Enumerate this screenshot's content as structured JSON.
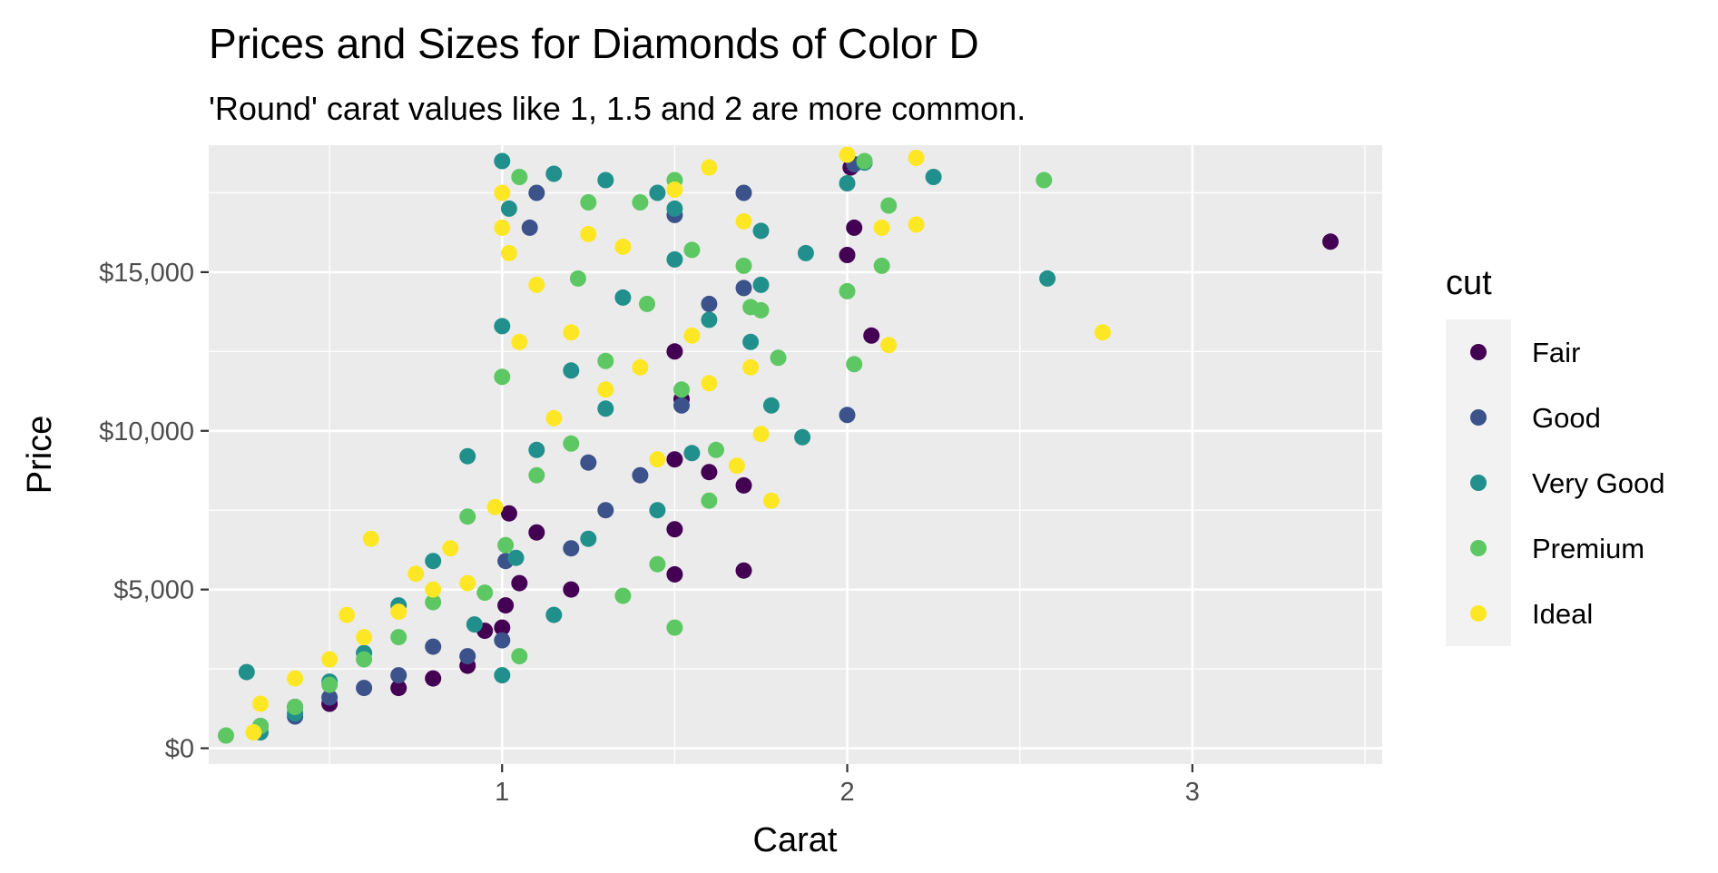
{
  "chart_data": {
    "type": "scatter",
    "title": "Prices and Sizes for Diamonds of Color D",
    "subtitle": "'Round' carat values like 1, 1.5 and 2 are more common.",
    "xlabel": "Carat",
    "ylabel": "Price",
    "xlim": [
      0.15,
      3.55
    ],
    "ylim": [
      -500,
      19000
    ],
    "x_ticks": [
      1,
      2,
      3
    ],
    "x_tick_labels": [
      "1",
      "2",
      "3"
    ],
    "y_ticks": [
      0,
      5000,
      10000,
      15000
    ],
    "y_tick_labels": [
      "$0",
      "$5,000",
      "$10,000",
      "$15,000"
    ],
    "grid": true,
    "legend": {
      "title": "cut",
      "position": "right",
      "entries": [
        "Fair",
        "Good",
        "Very Good",
        "Premium",
        "Ideal"
      ]
    },
    "colors": {
      "Fair": "#440154",
      "Good": "#3b528b",
      "Very Good": "#21908c",
      "Premium": "#5dc863",
      "Ideal": "#fde725"
    },
    "series": [
      {
        "name": "Fair",
        "points": [
          [
            3.4,
            15960
          ],
          [
            2.0,
            15540
          ],
          [
            2.07,
            13000
          ],
          [
            2.02,
            16400
          ],
          [
            1.7,
            5600
          ],
          [
            1.7,
            8280
          ],
          [
            1.5,
            5480
          ],
          [
            1.5,
            6900
          ],
          [
            1.5,
            9100
          ],
          [
            1.5,
            12500
          ],
          [
            1.6,
            8700
          ],
          [
            1.01,
            4500
          ],
          [
            1.0,
            3800
          ],
          [
            1.05,
            5200
          ],
          [
            0.9,
            2600
          ],
          [
            0.8,
            2200
          ],
          [
            0.7,
            1900
          ],
          [
            0.5,
            1400
          ],
          [
            0.4,
            1300
          ],
          [
            1.02,
            7400
          ],
          [
            1.2,
            5000
          ],
          [
            2.01,
            18300
          ],
          [
            1.52,
            11000
          ],
          [
            0.95,
            3700
          ],
          [
            1.1,
            6800
          ]
        ]
      },
      {
        "name": "Good",
        "points": [
          [
            1.7,
            17500
          ],
          [
            1.7,
            14500
          ],
          [
            2.0,
            10500
          ],
          [
            1.1,
            17500
          ],
          [
            1.08,
            16400
          ],
          [
            1.4,
            8600
          ],
          [
            1.3,
            7500
          ],
          [
            1.5,
            16800
          ],
          [
            1.0,
            3400
          ],
          [
            0.9,
            2900
          ],
          [
            0.7,
            2300
          ],
          [
            0.5,
            1600
          ],
          [
            0.3,
            700
          ],
          [
            2.02,
            18400
          ],
          [
            1.2,
            6300
          ],
          [
            1.01,
            5900
          ],
          [
            0.8,
            3200
          ],
          [
            1.52,
            10800
          ],
          [
            1.6,
            14000
          ],
          [
            1.25,
            9000
          ],
          [
            0.6,
            1900
          ],
          [
            0.4,
            1000
          ]
        ]
      },
      {
        "name": "Very Good",
        "points": [
          [
            1.0,
            18500
          ],
          [
            1.15,
            18100
          ],
          [
            1.3,
            17900
          ],
          [
            1.45,
            17500
          ],
          [
            2.05,
            18450
          ],
          [
            2.25,
            18000
          ],
          [
            2.58,
            14800
          ],
          [
            1.88,
            15600
          ],
          [
            1.87,
            9800
          ],
          [
            1.75,
            16300
          ],
          [
            1.72,
            12800
          ],
          [
            1.5,
            15400
          ],
          [
            1.5,
            17000
          ],
          [
            1.35,
            14200
          ],
          [
            1.3,
            10700
          ],
          [
            1.2,
            11900
          ],
          [
            1.1,
            9400
          ],
          [
            1.0,
            13300
          ],
          [
            1.0,
            2300
          ],
          [
            0.9,
            9200
          ],
          [
            0.8,
            5900
          ],
          [
            0.7,
            4500
          ],
          [
            0.6,
            3000
          ],
          [
            0.5,
            2100
          ],
          [
            0.4,
            1100
          ],
          [
            0.26,
            2400
          ],
          [
            0.3,
            500
          ],
          [
            1.6,
            13500
          ],
          [
            1.75,
            14600
          ],
          [
            1.02,
            17000
          ],
          [
            2.0,
            17800
          ],
          [
            1.45,
            7500
          ],
          [
            1.25,
            6600
          ],
          [
            1.15,
            4200
          ],
          [
            1.04,
            6000
          ],
          [
            0.92,
            3900
          ],
          [
            1.55,
            9300
          ],
          [
            1.78,
            10800
          ]
        ]
      },
      {
        "name": "Premium",
        "points": [
          [
            2.57,
            17900
          ],
          [
            2.1,
            15200
          ],
          [
            2.02,
            12100
          ],
          [
            2.0,
            14400
          ],
          [
            2.12,
            17100
          ],
          [
            1.5,
            3800
          ],
          [
            1.55,
            15700
          ],
          [
            1.7,
            15200
          ],
          [
            1.72,
            13900
          ],
          [
            1.8,
            12300
          ],
          [
            1.6,
            7800
          ],
          [
            1.5,
            17900
          ],
          [
            1.42,
            14000
          ],
          [
            1.4,
            17200
          ],
          [
            1.25,
            17200
          ],
          [
            1.22,
            14800
          ],
          [
            1.0,
            11700
          ],
          [
            1.01,
            6400
          ],
          [
            1.05,
            2900
          ],
          [
            0.9,
            7300
          ],
          [
            0.8,
            4600
          ],
          [
            0.7,
            3500
          ],
          [
            0.6,
            2800
          ],
          [
            0.5,
            2000
          ],
          [
            0.4,
            1300
          ],
          [
            0.2,
            400
          ],
          [
            0.3,
            700
          ],
          [
            2.05,
            18500
          ],
          [
            1.3,
            12200
          ],
          [
            1.1,
            8600
          ],
          [
            1.45,
            5800
          ],
          [
            1.35,
            4800
          ],
          [
            1.2,
            9600
          ],
          [
            1.52,
            11300
          ],
          [
            1.62,
            9400
          ],
          [
            1.75,
            13800
          ],
          [
            0.95,
            4900
          ],
          [
            1.05,
            18000
          ]
        ]
      },
      {
        "name": "Ideal",
        "points": [
          [
            2.74,
            13100
          ],
          [
            2.2,
            16500
          ],
          [
            2.2,
            18600
          ],
          [
            2.0,
            18700
          ],
          [
            2.1,
            16400
          ],
          [
            2.12,
            12700
          ],
          [
            1.78,
            7800
          ],
          [
            1.75,
            9900
          ],
          [
            1.7,
            16600
          ],
          [
            1.68,
            8900
          ],
          [
            1.6,
            18300
          ],
          [
            1.5,
            17600
          ],
          [
            1.55,
            13000
          ],
          [
            1.35,
            15800
          ],
          [
            1.25,
            16200
          ],
          [
            1.2,
            13100
          ],
          [
            1.1,
            14600
          ],
          [
            1.0,
            17500
          ],
          [
            1.0,
            16400
          ],
          [
            0.98,
            7600
          ],
          [
            0.9,
            5200
          ],
          [
            0.8,
            5000
          ],
          [
            0.7,
            4300
          ],
          [
            0.62,
            6600
          ],
          [
            0.6,
            3500
          ],
          [
            0.55,
            4200
          ],
          [
            0.5,
            2800
          ],
          [
            0.4,
            2200
          ],
          [
            0.3,
            1400
          ],
          [
            0.28,
            500
          ],
          [
            1.05,
            12800
          ],
          [
            1.15,
            10400
          ],
          [
            1.3,
            11300
          ],
          [
            1.45,
            9100
          ],
          [
            1.02,
            15600
          ],
          [
            1.4,
            12000
          ],
          [
            1.6,
            11500
          ],
          [
            1.72,
            12000
          ],
          [
            0.85,
            6300
          ],
          [
            0.75,
            5500
          ]
        ]
      }
    ]
  }
}
